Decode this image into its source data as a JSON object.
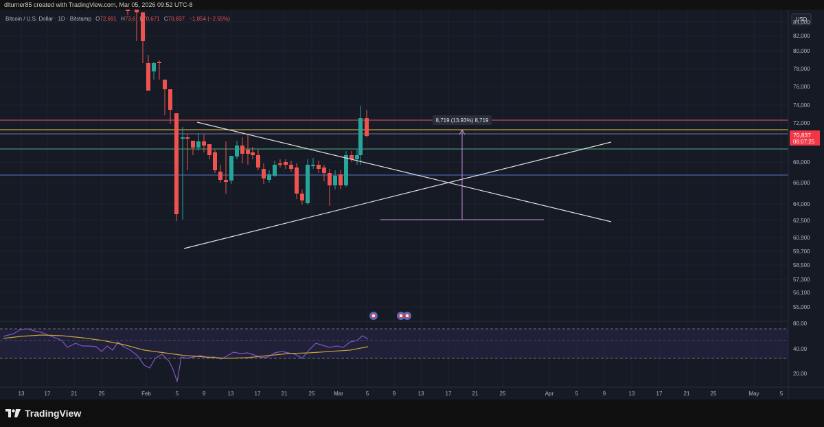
{
  "header": {
    "creator_line": "dlturner85 created with TradingView.com, Mar 05, 2026 09:52 UTC-8"
  },
  "symbol": {
    "name": "Bitcoin / U.S. Dollar · 1D · Bitstamp",
    "open_label": "O",
    "open_value": "72,691",
    "high_label": "H",
    "high_value": "73,6",
    "low_label": "L",
    "low_value": "70,671",
    "close_label": "C",
    "close_value": "70,837",
    "change": "−1,854 (−2.55%)"
  },
  "currency": "USD",
  "price_axis": {
    "ticks": [
      "84,000",
      "82,000",
      "80,000",
      "78,000",
      "76,000",
      "74,000",
      "72,000",
      "68,000",
      "66,000",
      "64,000",
      "62,500",
      "60,900",
      "59,700",
      "58,500",
      "57,300",
      "56,100",
      "55,000"
    ]
  },
  "current_price": {
    "price": "70,837",
    "countdown": "06:07:25"
  },
  "measure_label": "8,719 (13.93%) 8,719",
  "rsi": {
    "ticks": [
      "80.00",
      "40.00",
      "20.00"
    ]
  },
  "time_axis": {
    "labels": [
      "13",
      "17",
      "21",
      "25",
      "Feb",
      "5",
      "9",
      "13",
      "17",
      "21",
      "25",
      "Mar",
      "5",
      "9",
      "13",
      "17",
      "21",
      "25",
      "Apr",
      "5",
      "9",
      "13",
      "17",
      "21",
      "25",
      "May",
      "5"
    ]
  },
  "brand": {
    "name": "TradingView"
  },
  "colors": {
    "up": "#26a69a",
    "down": "#ef5350",
    "background": "#161a25",
    "rsi_line": "#7e57c2",
    "rsi_ma": "#c9a33a"
  }
}
